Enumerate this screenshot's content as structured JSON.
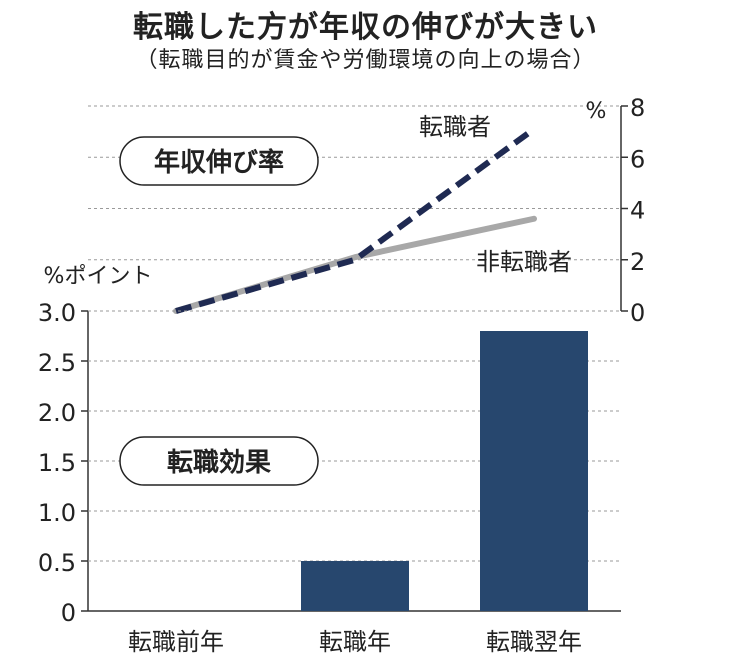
{
  "header": {
    "title": "転職した方が年収の伸びが大きい",
    "subtitle": "（転職目的が賃金や労働環境の向上の場合）"
  },
  "colors": {
    "switcher_line": "#1f2a52",
    "non_switcher_line": "#a8a8a8",
    "bar": "#27476e",
    "grid": "#9a9a9a"
  },
  "chart_data": [
    {
      "type": "line",
      "label": "年収伸び率",
      "x": [
        "転職前年",
        "転職年",
        "転職翌年"
      ],
      "y_unit_label": "%",
      "ylim": [
        0,
        8
      ],
      "y_ticks": [
        "0",
        "2",
        "4",
        "6",
        "8"
      ],
      "y_axis_side": "right",
      "grid": true,
      "series": [
        {
          "name": "転職者",
          "style": "dashed",
          "color": "#1f2a52",
          "values": [
            0,
            2.0,
            7.1
          ]
        },
        {
          "name": "非転職者",
          "style": "solid",
          "color": "#a8a8a8",
          "values": [
            0,
            2.1,
            3.6
          ]
        }
      ]
    },
    {
      "type": "bar",
      "label": "転職効果",
      "categories": [
        "転職前年",
        "転職年",
        "転職翌年"
      ],
      "values": [
        0,
        0.5,
        2.8
      ],
      "y_unit_label": "%ポイント",
      "ylim": [
        0,
        3.0
      ],
      "y_ticks": [
        "0",
        "0.5",
        "1.0",
        "1.5",
        "2.0",
        "2.5",
        "3.0"
      ],
      "y_axis_side": "left",
      "grid": true,
      "color": "#27476e"
    }
  ]
}
